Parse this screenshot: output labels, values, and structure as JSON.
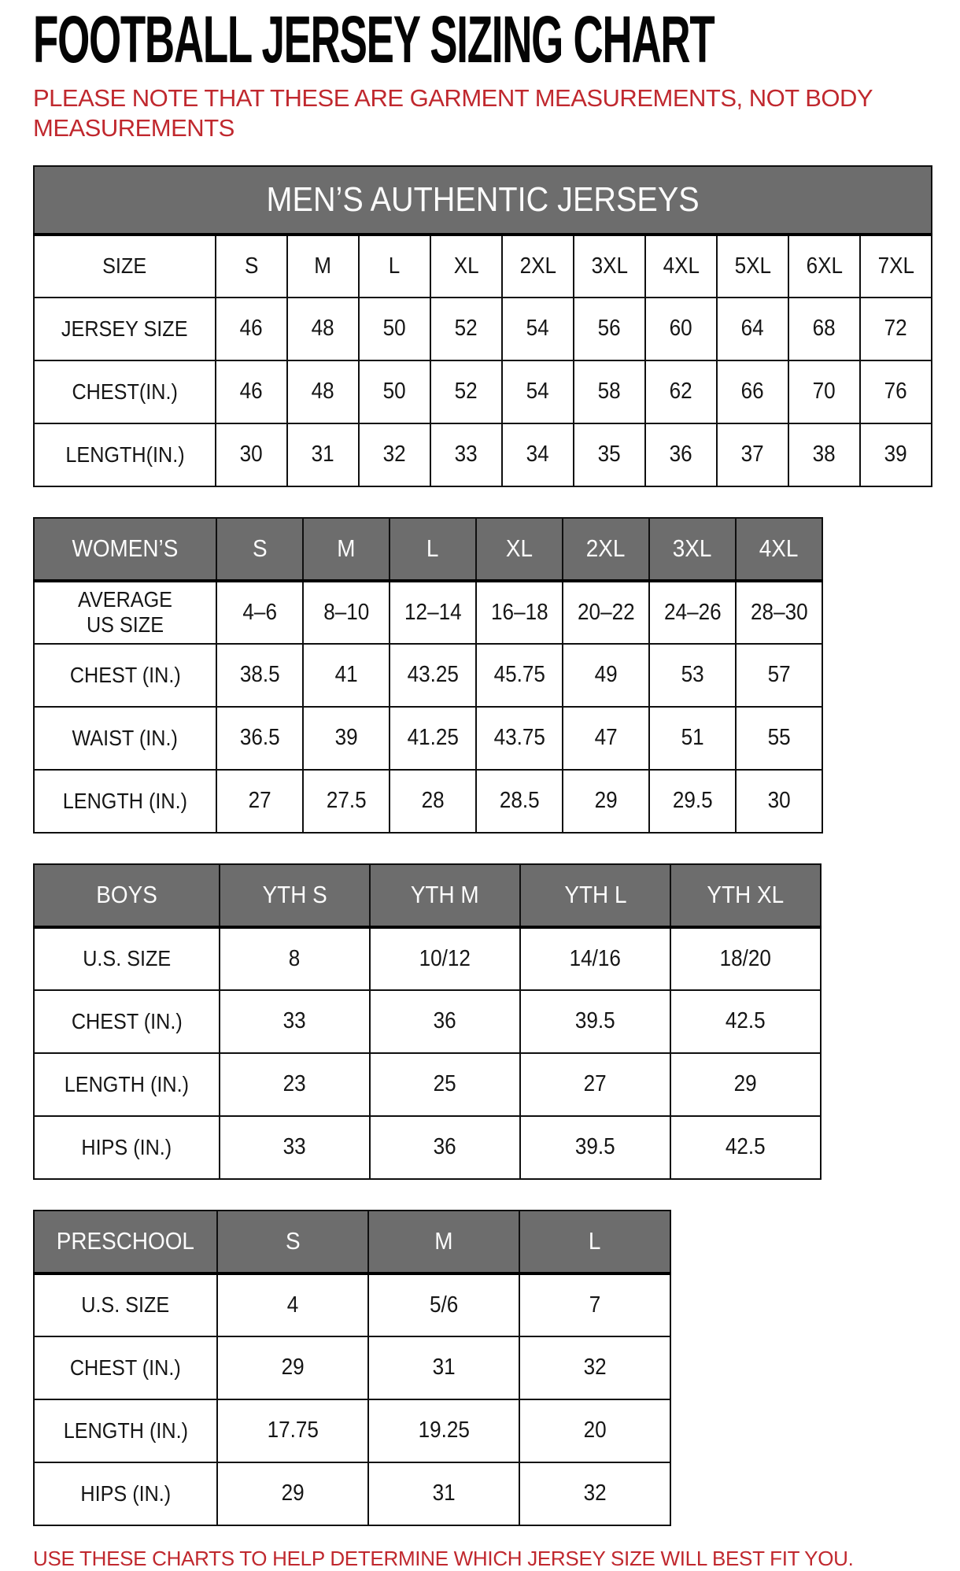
{
  "page": {
    "title": "FOOTBALL JERSEY SIZING CHART",
    "note": "PLEASE NOTE THAT THESE ARE GARMENT MEASUREMENTS, NOT BODY MEASUREMENTS",
    "footer": "USE THESE CHARTS TO HELP DETERMINE WHICH JERSEY SIZE WILL BEST FIT YOU.",
    "colors": {
      "accent_red": "#c0282e",
      "header_gray": "#6d6d6d",
      "border_black": "#0f0f0f"
    }
  },
  "tables": [
    {
      "id": "mens",
      "banner": "MEN’S AUTHENTIC JERSEYS",
      "rows": [
        {
          "label": "SIZE",
          "values": [
            "S",
            "M",
            "L",
            "XL",
            "2XL",
            "3XL",
            "4XL",
            "5XL",
            "6XL",
            "7XL"
          ]
        },
        {
          "label": "JERSEY SIZE",
          "values": [
            "46",
            "48",
            "50",
            "52",
            "54",
            "56",
            "60",
            "64",
            "68",
            "72"
          ]
        },
        {
          "label": "CHEST(IN.)",
          "values": [
            "46",
            "48",
            "50",
            "52",
            "54",
            "58",
            "62",
            "66",
            "70",
            "76"
          ]
        },
        {
          "label": "LENGTH(IN.)",
          "values": [
            "30",
            "31",
            "32",
            "33",
            "34",
            "35",
            "36",
            "37",
            "38",
            "39"
          ]
        }
      ]
    },
    {
      "id": "womens",
      "header_label": "WOMEN’S",
      "header_cols": [
        "S",
        "M",
        "L",
        "XL",
        "2XL",
        "3XL",
        "4XL"
      ],
      "rows": [
        {
          "label": "AVERAGE US SIZE",
          "values": [
            "4–6",
            "8–10",
            "12–14",
            "16–18",
            "20–22",
            "24–26",
            "28–30"
          ]
        },
        {
          "label": "CHEST (IN.)",
          "values": [
            "38.5",
            "41",
            "43.25",
            "45.75",
            "49",
            "53",
            "57"
          ]
        },
        {
          "label": "WAIST (IN.)",
          "values": [
            "36.5",
            "39",
            "41.25",
            "43.75",
            "47",
            "51",
            "55"
          ]
        },
        {
          "label": "LENGTH (IN.)",
          "values": [
            "27",
            "27.5",
            "28",
            "28.5",
            "29",
            "29.5",
            "30"
          ]
        }
      ]
    },
    {
      "id": "boys",
      "header_label": "BOYS",
      "header_cols": [
        "YTH S",
        "YTH M",
        "YTH L",
        "YTH XL"
      ],
      "rows": [
        {
          "label": "U.S. SIZE",
          "values": [
            "8",
            "10/12",
            "14/16",
            "18/20"
          ]
        },
        {
          "label": "CHEST (IN.)",
          "values": [
            "33",
            "36",
            "39.5",
            "42.5"
          ]
        },
        {
          "label": "LENGTH (IN.)",
          "values": [
            "23",
            "25",
            "27",
            "29"
          ]
        },
        {
          "label": "HIPS (IN.)",
          "values": [
            "33",
            "36",
            "39.5",
            "42.5"
          ]
        }
      ]
    },
    {
      "id": "preschool",
      "header_label": "PRESCHOOL",
      "header_cols": [
        "S",
        "M",
        "L"
      ],
      "rows": [
        {
          "label": "U.S. SIZE",
          "values": [
            "4",
            "5/6",
            "7"
          ]
        },
        {
          "label": "CHEST (IN.)",
          "values": [
            "29",
            "31",
            "32"
          ]
        },
        {
          "label": "LENGTH (IN.)",
          "values": [
            "17.75",
            "19.25",
            "20"
          ]
        },
        {
          "label": "HIPS (IN.)",
          "values": [
            "29",
            "31",
            "32"
          ]
        }
      ]
    }
  ]
}
